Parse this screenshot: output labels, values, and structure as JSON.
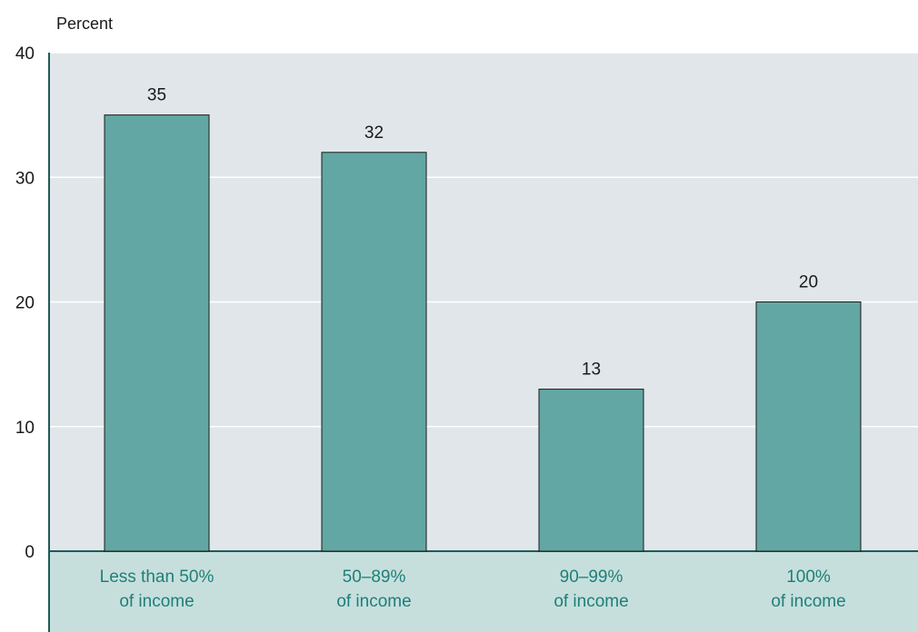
{
  "chart_data": {
    "type": "bar",
    "ylabel": "Percent",
    "ylim": [
      0,
      40
    ],
    "yticks": [
      0,
      10,
      20,
      30,
      40
    ],
    "categories": [
      [
        "Less than 50%",
        "of income"
      ],
      [
        "50–89%",
        "of income"
      ],
      [
        "90–99%",
        "of income"
      ],
      [
        "100%",
        "of income"
      ]
    ],
    "values": [
      35,
      32,
      13,
      20
    ],
    "grid": true,
    "colors": {
      "plot_bg": "#e1e6ea",
      "bar": "#62a7a3",
      "category_band": "#c6dfdd",
      "category_text": "#1f7f78",
      "axis": "#1c5c58"
    }
  }
}
